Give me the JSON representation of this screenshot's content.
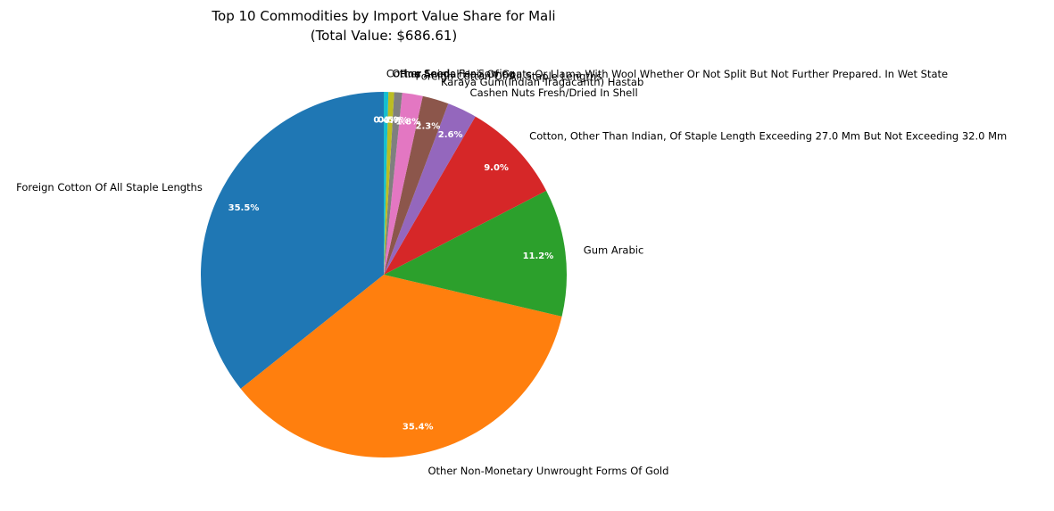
{
  "chart_data": {
    "type": "pie",
    "title": "Top 10 Commodities by Import Value Share for Mali",
    "subtitle": "(Total Value: $686.61)",
    "start_angle_deg": 90,
    "direction": "counterclockwise",
    "slices": [
      {
        "label": "Foreign Cotton Of All Staple Lengths",
        "value": 35.5,
        "pct_label": "35.5%",
        "color": "#1f77b4"
      },
      {
        "label": "Other Non-Monetary Unwrought Forms Of Gold",
        "value": 35.4,
        "pct_label": "35.4%",
        "color": "#ff7f0e"
      },
      {
        "label": "Gum Arabic",
        "value": 11.2,
        "pct_label": "11.2%",
        "color": "#2ca02c"
      },
      {
        "label": "Cotton, Other Than Indian, Of Staple Length Exceeding 27.0 Mm But Not Exceeding 32.0 Mm",
        "value": 9.0,
        "pct_label": "9.0%",
        "color": "#d62728"
      },
      {
        "label": "Cashen Nuts Fresh/Dried In Shell",
        "value": 2.6,
        "pct_label": "2.6%",
        "color": "#9467bd"
      },
      {
        "label": "Karaya Gum(Indian Tragacanth) Hastab",
        "value": 2.3,
        "pct_label": "2.3%",
        "color": "#8c564b"
      },
      {
        "label": "Foreign Cotton Of All Staple Lengths",
        "value": 1.8,
        "pct_label": "1.8%",
        "color": "#e377c2"
      },
      {
        "label": "Fine Animal Hair Of Goats Or Llama With Wool Whether Or Not Split But Not Further Prepared. In Wet State",
        "value": 0.7,
        "pct_label": "0.7%",
        "color": "#7f7f7f"
      },
      {
        "label": "Other Seeds For Sowing",
        "value": 0.5,
        "pct_label": "0.5%",
        "color": "#bcbd22"
      },
      {
        "label": "Cotton Seed",
        "value": 0.4,
        "pct_label": "0.4%",
        "color": "#17becf"
      }
    ]
  }
}
